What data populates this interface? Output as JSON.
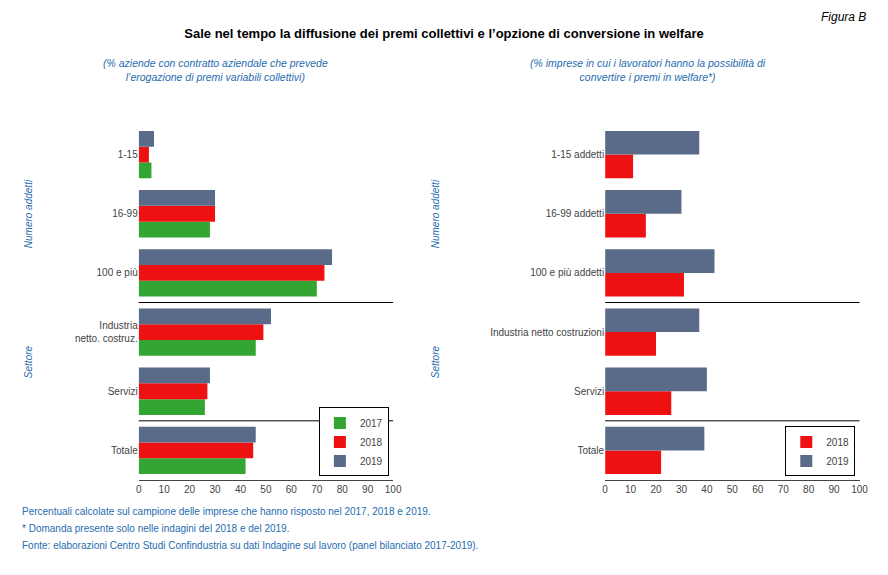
{
  "title": "Sale nel tempo la diffusione dei premi collettivi e l’opzione di conversione in welfare",
  "annotations": [
    "Figura B",
    "Percentuali calcolate sul campione delle imprese che hanno risposto nel 2017, 2018 e 2019.",
    "* Domanda presente solo nelle indagini del 2018 e del 2019.",
    "Fonte: elaborazioni Centro Studi Confindustria su dati Indagine sul lavoro (panel bilanciato 2017-2019)."
  ],
  "chart_data": [
    {
      "type": "bar",
      "orientation": "horizontal",
      "subtitle": "(% aziende con contratto aziendale che prevede\nl’erogazione di premi variabili collettivi)",
      "categories": [
        "Totale",
        "Servizi",
        "Industria\nnetto. costruz.",
        "100 e più",
        "16-99",
        "1-15"
      ],
      "series": [
        {
          "name": "2017",
          "color": "#33a532",
          "values": [
            42,
            26,
            46,
            70,
            28,
            5
          ]
        },
        {
          "name": "2018",
          "color": "#ee1111",
          "values": [
            45,
            27,
            49,
            73,
            30,
            4
          ]
        },
        {
          "name": "2019",
          "color": "#5a6b8a",
          "values": [
            46,
            28,
            52,
            76,
            30,
            6
          ]
        }
      ],
      "xlim": [
        0,
        100
      ],
      "xticks": [
        0,
        10,
        20,
        30,
        40,
        50,
        60,
        70,
        80,
        90,
        100
      ],
      "grid": false,
      "legend": "lower right",
      "annotations": [
        "Numero addetti",
        "Settore"
      ]
    },
    {
      "type": "bar",
      "orientation": "horizontal",
      "subtitle": "(% imprese in cui i lavoratori hanno la possibilità di\nconvertire i premi in welfare*)",
      "categories": [
        "Totale",
        "Servizi",
        "Industria netto costruzioni",
        "100 e più addetti",
        "16-99 addetti",
        "1-15 addetti"
      ],
      "series": [
        {
          "name": "2018",
          "color": "#ee1111",
          "values": [
            22,
            26,
            20,
            31,
            16,
            11
          ]
        },
        {
          "name": "2019",
          "color": "#5a6b8a",
          "values": [
            39,
            40,
            37,
            43,
            30,
            37
          ]
        }
      ],
      "xlim": [
        0,
        100
      ],
      "xticks": [
        0,
        10,
        20,
        30,
        40,
        50,
        60,
        70,
        80,
        90,
        100
      ],
      "grid": false,
      "legend": "lower right",
      "annotations": [
        "Numero addetti",
        "Settore"
      ]
    }
  ]
}
